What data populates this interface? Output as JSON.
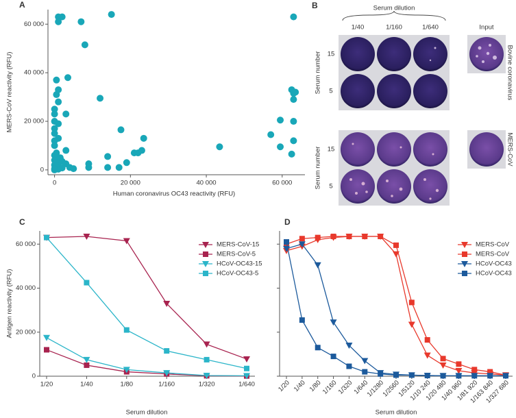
{
  "chart_data": [
    {
      "type": "scatter",
      "panel_label": "A",
      "x_label": "Human coronavirus OC43 reactivity (RFU)",
      "y_label": "MERS-CoV reactivity (RFU)",
      "color": "#19a7b8",
      "x": [
        1000,
        2000,
        1000,
        15000,
        7000,
        8000,
        63000,
        3500,
        500,
        1000,
        500,
        1000,
        0,
        0,
        3000,
        0,
        1000,
        0,
        0,
        1000,
        0,
        0,
        3000,
        500,
        0,
        1500,
        0,
        2000,
        500,
        3000,
        0,
        1000,
        500,
        2000,
        0,
        1000,
        0,
        4000,
        5000,
        9000,
        9000,
        12000,
        14000,
        14000,
        17500,
        17000,
        19000,
        21000,
        22000,
        23000,
        23500,
        43500,
        57000,
        59500,
        59500,
        62500,
        62500,
        63000,
        63000,
        63000,
        63000,
        63500
      ],
      "values": [
        63000,
        63000,
        61000,
        64000,
        61000,
        51500,
        63000,
        38000,
        37000,
        33000,
        31000,
        28000,
        25000,
        23000,
        23000,
        20000,
        19000,
        17000,
        15000,
        13000,
        12000,
        10000,
        8000,
        7000,
        6000,
        5000,
        4000,
        3500,
        3000,
        2500,
        2000,
        1500,
        1000,
        800,
        500,
        300,
        0,
        1000,
        500,
        2500,
        1000,
        29500,
        5500,
        1000,
        16500,
        1000,
        3000,
        7000,
        7000,
        8000,
        13000,
        9500,
        14500,
        20500,
        9500,
        6500,
        33000,
        31500,
        29000,
        20000,
        12000,
        32000
      ],
      "xlim": [
        -3000,
        66000
      ],
      "ylim": [
        -2000,
        66000
      ],
      "xticks": [
        0,
        {
          "value": 20000,
          "label": "20 000"
        },
        {
          "value": 40000,
          "label": "40 000"
        },
        {
          "value": 60000,
          "label": "60 000"
        }
      ],
      "yticks": [
        0,
        {
          "value": 20000,
          "label": "20 000"
        },
        {
          "value": 40000,
          "label": "40 000"
        },
        {
          "value": 60000,
          "label": "60 000"
        }
      ]
    },
    {
      "type": "line",
      "panel_label": "C",
      "x_label": "Serum dilution",
      "y_label": "Antigen reactivity (RFU)",
      "categories": [
        "1/20",
        "1/40",
        "1/80",
        "1/160",
        "1/320",
        "1/640"
      ],
      "series": [
        {
          "name": "MERS-CoV-15",
          "color": "#a8234f",
          "marker": "triangle-down",
          "values": [
            63000,
            63500,
            61500,
            33000,
            14500,
            7800
          ]
        },
        {
          "name": "MERS-CoV-5",
          "color": "#a8234f",
          "marker": "square",
          "values": [
            12000,
            5000,
            2000,
            1000,
            200,
            100
          ]
        },
        {
          "name": "HCoV-OC43-15",
          "color": "#2bb5c9",
          "marker": "triangle-down",
          "values": [
            17500,
            7500,
            3000,
            1500,
            300,
            200
          ]
        },
        {
          "name": "HCoV-OC43-5",
          "color": "#2bb5c9",
          "marker": "square",
          "values": [
            63000,
            42500,
            21000,
            11500,
            7500,
            3500
          ]
        }
      ],
      "ylim": [
        0,
        66000
      ],
      "yticks": [
        0,
        {
          "value": 20000,
          "label": "20 000"
        },
        {
          "value": 40000,
          "label": "40 000"
        },
        {
          "value": 60000,
          "label": "60 000"
        }
      ],
      "legend": "top-right"
    },
    {
      "type": "line",
      "panel_label": "D",
      "x_label": "Serum dilution",
      "categories": [
        "1/20",
        "1/40",
        "1/80",
        "1/160",
        "1/320",
        "1/640",
        "1/1280",
        "1/2560",
        "1/5120",
        "1/10 240",
        "1/20 480",
        "1/40 960",
        "1/81 920",
        "1/163 840",
        "1/327 680"
      ],
      "series": [
        {
          "name": "MERS-CoV",
          "color": "#e8392c",
          "marker": "triangle-down",
          "values": [
            57000,
            59000,
            62000,
            63000,
            63500,
            63500,
            63500,
            55500,
            23500,
            9500,
            5000,
            2500,
            1500,
            1000,
            500
          ]
        },
        {
          "name": "MERS-CoV",
          "color": "#e8392c",
          "marker": "square",
          "values": [
            60000,
            62500,
            63000,
            63500,
            63500,
            63500,
            63500,
            59500,
            33500,
            16500,
            8000,
            5500,
            3000,
            2000,
            500
          ]
        },
        {
          "name": "HCoV-OC43",
          "color": "#1c5a9c",
          "marker": "triangle-down",
          "values": [
            58000,
            60000,
            50500,
            24500,
            14000,
            7000,
            1500,
            800,
            500,
            300,
            200,
            200,
            200,
            200,
            200
          ]
        },
        {
          "name": "HCoV-OC43",
          "color": "#1c5a9c",
          "marker": "square",
          "values": [
            61000,
            25500,
            13000,
            9000,
            4500,
            2000,
            1000,
            500,
            500,
            300,
            200,
            200,
            200,
            200,
            200
          ]
        }
      ],
      "ylim": [
        0,
        66000
      ],
      "yticks": [
        0,
        20000,
        40000,
        60000
      ],
      "ytick_labels": false,
      "legend": "top-right"
    }
  ],
  "panel_b": {
    "panel_label": "B",
    "title": "Serum dilution",
    "columns": [
      "1/40",
      "1/160",
      "1/640",
      "Input"
    ],
    "groups": [
      {
        "name": "Bovine coronavirus",
        "axis_label": "Serum number",
        "rows": [
          "15",
          "5"
        ]
      },
      {
        "name": "MERS-CoV",
        "axis_label": "Serum number",
        "rows": [
          "15",
          "5"
        ]
      }
    ]
  }
}
